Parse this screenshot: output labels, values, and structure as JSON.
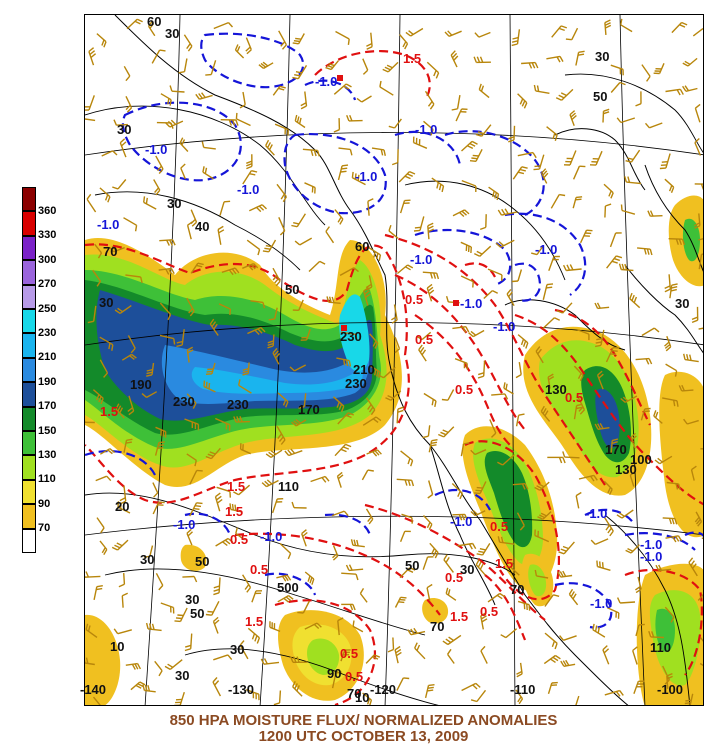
{
  "title": {
    "line1": "850 HPA MOISTURE FLUX/ NORMALIZED ANOMALIES",
    "line2": "1200 UTC OCTOBER 13, 2009"
  },
  "legend": {
    "levels": [
      {
        "label": "360",
        "color": "#8b0000"
      },
      {
        "label": "330",
        "color": "#d80000"
      },
      {
        "label": "300",
        "color": "#7b22c8"
      },
      {
        "label": "270",
        "color": "#9a64dc"
      },
      {
        "label": "250",
        "color": "#b79ae8"
      },
      {
        "label": "230",
        "color": "#18d8e8"
      },
      {
        "label": "210",
        "color": "#1ab4ee"
      },
      {
        "label": "190",
        "color": "#2a8ae0"
      },
      {
        "label": "170",
        "color": "#1d4f9a"
      },
      {
        "label": "150",
        "color": "#138a2a"
      },
      {
        "label": "130",
        "color": "#3ec038"
      },
      {
        "label": "110",
        "color": "#a0e020"
      },
      {
        "label": "90",
        "color": "#f0e030"
      },
      {
        "label": "70",
        "color": "#f0c020"
      },
      {
        "label": "",
        "color": "#ffffff"
      }
    ]
  },
  "colors": {
    "flux_contour": "#000000",
    "positive_anomaly": "#e01010",
    "negative_anomaly": "#1515d8",
    "wind_barbs": "#b8860b",
    "coastline": "#000000",
    "title_text": "#8b4a22"
  },
  "longitude_labels": [
    "-140",
    "-130",
    "-120",
    "-110",
    "-100"
  ],
  "map_labels": {
    "flux": [
      "60",
      "30",
      "30",
      "50",
      "30",
      "30",
      "40",
      "70",
      "30",
      "190",
      "230",
      "230",
      "50",
      "60",
      "230",
      "210",
      "230",
      "170",
      "130",
      "110",
      "170",
      "130",
      "100",
      "30",
      "20",
      "30",
      "50",
      "30",
      "50",
      "500",
      "50",
      "30",
      "70",
      "70",
      "10",
      "30",
      "30",
      "110",
      "90",
      "70",
      "10"
    ],
    "negative_anomaly": [
      "-1.0",
      "-1.0",
      "-1.0",
      "-1.0",
      "-1.0",
      "-1.0",
      "-1.0",
      "-1.0",
      "-1.0",
      "-1.0",
      "-1.0",
      "-1.0",
      "-1.0",
      "-1.0",
      "-1.0",
      "-1.0",
      "-1.0"
    ],
    "positive_anomaly": [
      "1.5",
      "0.5",
      "0.5",
      "0.5",
      "1.5",
      "1.5",
      "1.5",
      "1.5",
      "0.5",
      "0.5",
      "0.5",
      "1.5",
      "0.5",
      "0.5",
      "0.5",
      "1.5",
      "0.5",
      "0.5"
    ]
  }
}
